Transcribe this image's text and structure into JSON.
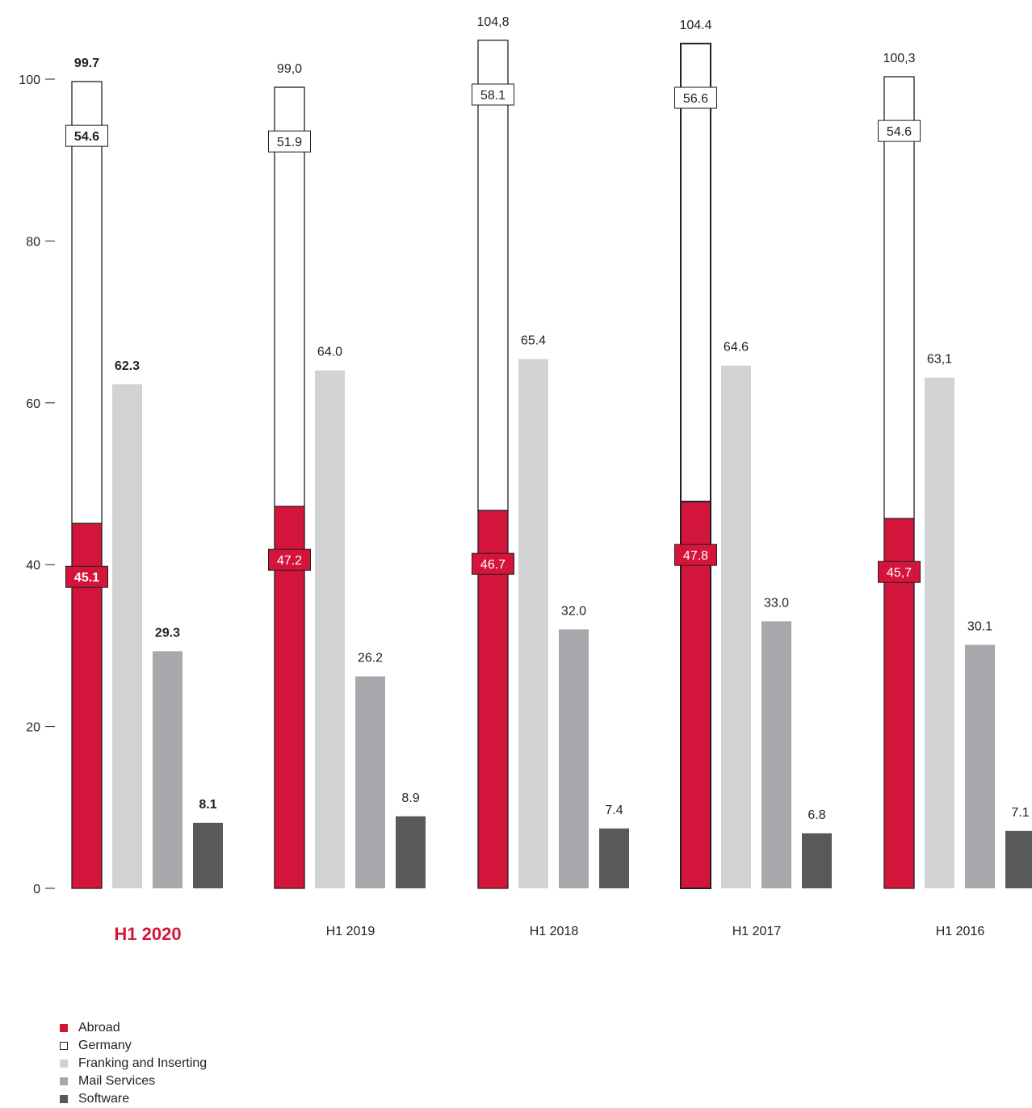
{
  "chart_data": {
    "type": "bar",
    "ylim": [
      0,
      100
    ],
    "yticks": [
      0,
      20,
      40,
      60,
      80,
      100
    ],
    "grid": false,
    "legend_placement": "bottom-left",
    "categories": [
      "H1 2020",
      "H1 2019",
      "H1 2018",
      "H1 2017",
      "H1 2016"
    ],
    "highlight_category": "H1 2020",
    "stacked": {
      "series": [
        {
          "name": "Abroad",
          "values": [
            45.1,
            47.2,
            46.7,
            47.8,
            45.7
          ],
          "labels": [
            "45.1",
            "47.2",
            "46.7",
            "47.8",
            "45,7"
          ]
        },
        {
          "name": "Germany",
          "values": [
            54.6,
            51.9,
            58.1,
            56.6,
            54.6
          ],
          "labels": [
            "54.6",
            "51.9",
            "58.1",
            "56.6",
            "54.6"
          ]
        }
      ],
      "totals": [
        99.7,
        99.0,
        104.8,
        104.4,
        100.3
      ],
      "total_labels": [
        "99.7",
        "99,0",
        "104,8",
        "104.4",
        "100,3"
      ]
    },
    "series": [
      {
        "name": "Franking and Inserting",
        "values": [
          62.3,
          64.0,
          65.4,
          64.6,
          63.1
        ],
        "labels": [
          "62.3",
          "64.0",
          "65.4",
          "64.6",
          "63,1"
        ]
      },
      {
        "name": "Mail Services",
        "values": [
          29.3,
          26.2,
          32.0,
          33.0,
          30.1
        ],
        "labels": [
          "29.3",
          "26.2",
          "32.0",
          "33.0",
          "30.1"
        ]
      },
      {
        "name": "Software",
        "values": [
          8.1,
          8.9,
          7.4,
          6.8,
          7.1
        ],
        "labels": [
          "8.1",
          "8.9",
          "7.4",
          "6.8",
          "7.1"
        ]
      }
    ],
    "colors": {
      "Abroad": "#d4153b",
      "Germany": "#ffffff",
      "Franking and Inserting": "#d1d2d4",
      "Mail Services": "#a7a8ab",
      "Software": "#58595b",
      "highlight": "#d4153b"
    }
  },
  "legend": [
    {
      "label": "Abroad",
      "color": "#d4153b",
      "outline": false
    },
    {
      "label": "Germany",
      "color": "#ffffff",
      "outline": true
    },
    {
      "label": "Franking and Inserting",
      "color": "#d1d2d4",
      "outline": false
    },
    {
      "label": "Mail Services",
      "color": "#a7a8ab",
      "outline": false
    },
    {
      "label": "Software",
      "color": "#58595b",
      "outline": false
    }
  ]
}
